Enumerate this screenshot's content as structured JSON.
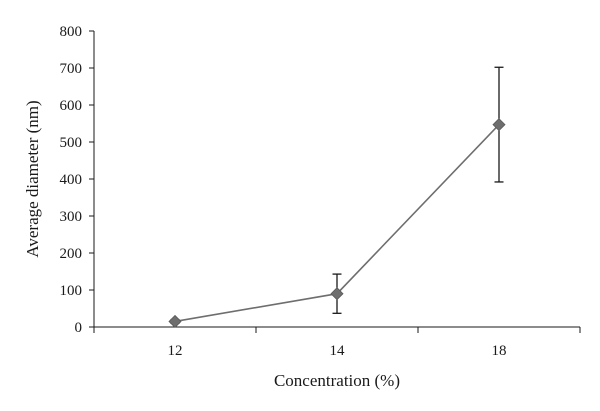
{
  "chart_data": {
    "type": "line",
    "title": "",
    "xlabel": "Concentration (%)",
    "ylabel": "Average diameter (nm)",
    "categories": [
      "12",
      "14",
      "18"
    ],
    "ylim": [
      0,
      800
    ],
    "yticks": [
      0,
      100,
      200,
      300,
      400,
      500,
      600,
      700,
      800
    ],
    "grid": false,
    "legend": "none",
    "series": [
      {
        "values": [
          15,
          90,
          547
        ],
        "error": [
          5,
          53,
          155
        ],
        "marker": "diamond",
        "color": "#6e6e6e"
      }
    ]
  }
}
